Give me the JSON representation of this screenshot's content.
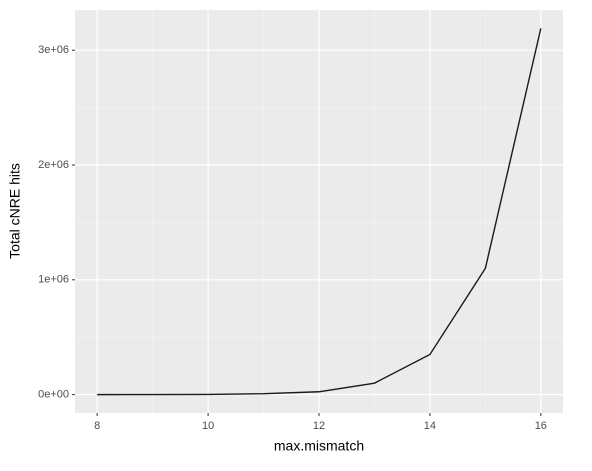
{
  "chart_data": {
    "type": "line",
    "x_label": "max.mismatch",
    "y_label": "Total cNRE hits",
    "x": [
      8,
      9,
      10,
      11,
      12,
      13,
      14,
      15,
      16
    ],
    "series": [
      {
        "color": "#1a1a1a",
        "values": [
          0,
          500,
          2000,
          8000,
          25000,
          100000,
          350000,
          1100000,
          3190000
        ]
      }
    ],
    "xlim": [
      7.6,
      16.4
    ],
    "xticks": [
      8,
      10,
      12,
      14,
      16
    ],
    "ylim": [
      -160000,
      3350000
    ],
    "yticks": [
      {
        "value": 0,
        "label": "0e+00"
      },
      {
        "value": 1000000,
        "label": "1e+06"
      },
      {
        "value": 2000000,
        "label": "2e+06"
      },
      {
        "value": 3000000,
        "label": "3e+06"
      }
    ],
    "grid": true
  }
}
